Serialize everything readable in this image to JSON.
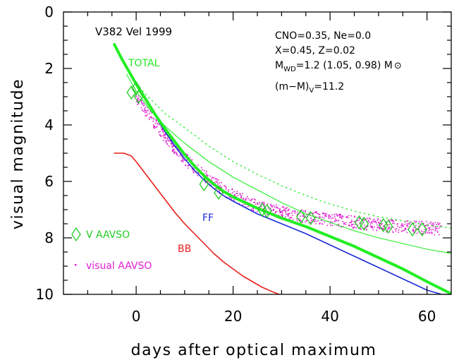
{
  "chart_data": {
    "type": "line",
    "xlabel": "days after optical maximum",
    "ylabel": "visual magnitude",
    "xlim": [
      -15,
      65
    ],
    "ylim": [
      10,
      0
    ],
    "y_inverted": true,
    "xticks": [
      "0",
      "20",
      "40",
      "60"
    ],
    "yticks": [
      "0",
      "2",
      "4",
      "6",
      "8",
      "10"
    ],
    "annotations": {
      "object": "V382 Vel 1999",
      "composition_line1": "CNO=0.35, Ne=0.0",
      "composition_line2": "X=0.45, Z=0.02",
      "mass_prefix": "M",
      "mass_sub": "WD",
      "mass_rest": "=1.2 (1.05, 0.98) M",
      "mass_sun": "⊙",
      "distance_prefix": "(m−M)",
      "distance_sub": "V",
      "distance_rest": "=11.2"
    },
    "curve_labels": {
      "total": "TOTAL",
      "ff": "FF",
      "bb": "BB"
    },
    "legend": {
      "v_aavso": "V AAVSO",
      "visual_aavso": "visual AAVSO",
      "placement": "lower-left"
    },
    "colors": {
      "total": "#22ee22",
      "ff": "#1c2bd6",
      "bb": "#e8201a",
      "visual": "#e020d0",
      "v_marker": "#22cc22"
    },
    "series": [
      {
        "name": "TOTAL",
        "x": [
          -4.5,
          -3,
          -1.5,
          0,
          2,
          4,
          6,
          8,
          10,
          12,
          14,
          16,
          18,
          20,
          25,
          30,
          35,
          40,
          45,
          50,
          55,
          60,
          65
        ],
        "y": [
          1.15,
          1.65,
          2.1,
          2.55,
          3.1,
          3.65,
          4.15,
          4.6,
          5.05,
          5.45,
          5.8,
          6.1,
          6.35,
          6.55,
          6.95,
          7.3,
          7.6,
          7.95,
          8.3,
          8.7,
          9.1,
          9.55,
          9.98
        ]
      },
      {
        "name": "FF",
        "x": [
          -4.5,
          -3,
          -1.5,
          0,
          2,
          4,
          6,
          8,
          10,
          12,
          14,
          16,
          18,
          20,
          25,
          30,
          35,
          40,
          45,
          50,
          55,
          60,
          63
        ],
        "y": [
          1.15,
          1.6,
          2.05,
          2.5,
          3.1,
          3.7,
          4.25,
          4.75,
          5.2,
          5.6,
          5.95,
          6.25,
          6.5,
          6.7,
          7.15,
          7.5,
          7.85,
          8.25,
          8.65,
          9.05,
          9.45,
          9.85,
          10.0
        ]
      },
      {
        "name": "BB",
        "x": [
          -4.5,
          -2.5,
          -1,
          0,
          2,
          4,
          6,
          8,
          10,
          12,
          14,
          16,
          18,
          20,
          22,
          24,
          26,
          28,
          29.5
        ],
        "y": [
          5.0,
          5.0,
          5.1,
          5.3,
          5.75,
          6.2,
          6.65,
          7.1,
          7.5,
          7.85,
          8.2,
          8.55,
          8.85,
          9.1,
          9.35,
          9.55,
          9.75,
          9.9,
          10.0
        ]
      },
      {
        "name": "(1.05 M⊙ model)",
        "x": [
          -2,
          0,
          3,
          6,
          10,
          15,
          20,
          25,
          30,
          35,
          40,
          45,
          50,
          55,
          60,
          65
        ],
        "y": [
          2.2,
          2.8,
          3.5,
          4.05,
          4.65,
          5.3,
          5.85,
          6.3,
          6.75,
          7.15,
          7.45,
          7.75,
          8.0,
          8.2,
          8.4,
          8.55
        ]
      },
      {
        "name": "(0.98 M⊙ model)",
        "x": [
          -2,
          0,
          3,
          6,
          10,
          15,
          20,
          25,
          30,
          35,
          40,
          45,
          50,
          55,
          60,
          65
        ],
        "y": [
          2.0,
          2.55,
          3.1,
          3.6,
          4.1,
          4.75,
          5.3,
          5.75,
          6.15,
          6.5,
          6.8,
          7.05,
          7.25,
          7.4,
          7.55,
          7.65
        ]
      }
    ],
    "v_aavso_points": {
      "x": [
        -1,
        0,
        0.5,
        14,
        17,
        26,
        27,
        34,
        36,
        46,
        47,
        51,
        52,
        57,
        59
      ],
      "y": [
        2.85,
        2.7,
        3.0,
        6.1,
        6.4,
        7.0,
        7.05,
        7.25,
        7.3,
        7.45,
        7.5,
        7.55,
        7.6,
        7.7,
        7.7
      ]
    },
    "visual_aavso_band": {
      "x": [
        0,
        2,
        4,
        6,
        8,
        10,
        12,
        14,
        16,
        18,
        20,
        22,
        25,
        30,
        35,
        40,
        45,
        50,
        55,
        60,
        63
      ],
      "y": [
        3.0,
        3.5,
        4.0,
        4.4,
        4.85,
        5.2,
        5.5,
        5.8,
        6.05,
        6.3,
        6.5,
        6.65,
        6.9,
        7.1,
        7.25,
        7.35,
        7.45,
        7.55,
        7.6,
        7.65,
        7.7
      ]
    }
  }
}
